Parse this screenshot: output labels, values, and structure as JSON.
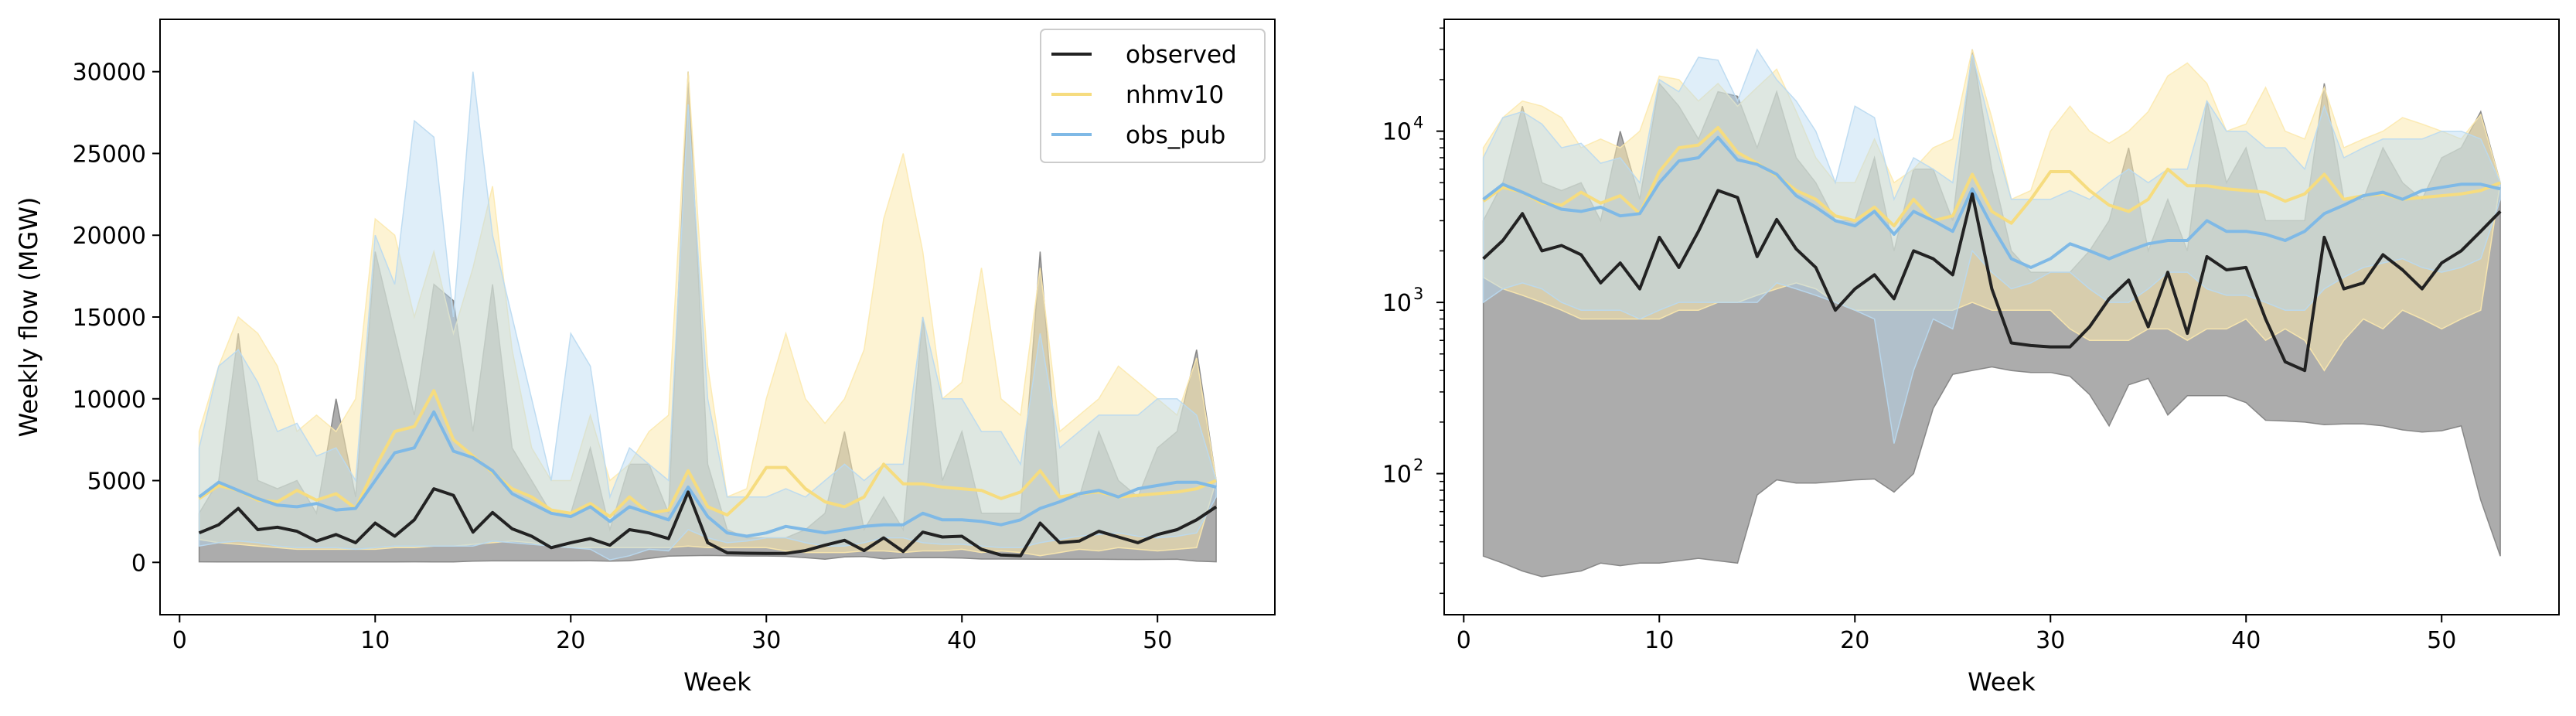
{
  "chart_data": [
    {
      "type": "line",
      "panel": "left",
      "title": "",
      "xlabel": "Week",
      "ylabel": "Weekly flow (MGW)",
      "yscale": "linear",
      "xlim": [
        -1,
        56
      ],
      "ylim": [
        -3200,
        33200
      ],
      "xticks": [
        0,
        10,
        20,
        30,
        40,
        50
      ],
      "yticks": [
        0,
        5000,
        10000,
        15000,
        20000,
        25000,
        30000
      ],
      "grid": false,
      "legend": {
        "placement": "top-right",
        "entries": [
          {
            "label": "observed",
            "color": "#222222"
          },
          {
            "label": "nhmv10",
            "color": "#f6dc7f"
          },
          {
            "label": "obs_pub",
            "color": "#7fb9e6"
          }
        ]
      }
    },
    {
      "type": "line",
      "panel": "right",
      "title": "",
      "xlabel": "Week",
      "ylabel": "",
      "yscale": "log",
      "xlim": [
        -1,
        56
      ],
      "ylim": [
        15,
        45000
      ],
      "xticks": [
        0,
        10,
        20,
        30,
        40,
        50
      ],
      "yticks": [
        100,
        1000,
        10000
      ],
      "ytick_labels": [
        "10",
        "10",
        "10"
      ],
      "ytick_exponents": [
        "2",
        "3",
        "4"
      ],
      "grid": false,
      "legend": null
    }
  ],
  "series_data": {
    "weeks": [
      1,
      2,
      3,
      4,
      5,
      6,
      7,
      8,
      9,
      10,
      11,
      12,
      13,
      14,
      15,
      16,
      17,
      18,
      19,
      20,
      21,
      22,
      23,
      24,
      25,
      26,
      27,
      28,
      29,
      30,
      31,
      32,
      33,
      34,
      35,
      36,
      37,
      38,
      39,
      40,
      41,
      42,
      43,
      44,
      45,
      46,
      47,
      48,
      49,
      50,
      51,
      52,
      53
    ],
    "series": [
      {
        "name": "observed",
        "color": "#222222",
        "band_color": "#7f7f7f",
        "median": [
          1800,
          2300,
          3300,
          2000,
          2150,
          1900,
          1300,
          1700,
          1200,
          2400,
          1600,
          2600,
          4500,
          4100,
          1850,
          3050,
          2050,
          1600,
          900,
          1200,
          1450,
          1050,
          2000,
          1800,
          1450,
          4300,
          1200,
          580,
          560,
          550,
          550,
          720,
          1050,
          1350,
          720,
          1500,
          660,
          1850,
          1550,
          1600,
          800,
          450,
          400,
          2400,
          1200,
          1300,
          1900,
          1550,
          1200,
          1700,
          2000,
          2600,
          3400
        ],
        "upper": [
          3000,
          5000,
          14000,
          5000,
          4500,
          5000,
          3000,
          10000,
          4000,
          19000,
          14000,
          9000,
          17000,
          16000,
          8000,
          17000,
          7000,
          5000,
          3000,
          3000,
          7000,
          2000,
          6000,
          6000,
          3000,
          30000,
          6000,
          2000,
          1500,
          1500,
          1500,
          2000,
          3000,
          8000,
          2000,
          4000,
          2000,
          15000,
          5000,
          8000,
          3000,
          3000,
          3000,
          19000,
          4000,
          4000,
          8000,
          5000,
          4000,
          7000,
          8000,
          13000,
          5000
        ],
        "lower": [
          33,
          30,
          27,
          25,
          26,
          27,
          30,
          29,
          30,
          30,
          31,
          32,
          31,
          30,
          75,
          92,
          88,
          88,
          90,
          92,
          93,
          78,
          100,
          240,
          380,
          400,
          420,
          400,
          390,
          390,
          370,
          290,
          190,
          330,
          360,
          220,
          285,
          285,
          285,
          260,
          205,
          203,
          200,
          193,
          195,
          195,
          190,
          180,
          175,
          178,
          190,
          70,
          33
        ]
      },
      {
        "name": "nhmv10",
        "color": "#f6dc7f",
        "band_color": "#fce9ae",
        "median": [
          3900,
          4700,
          4400,
          3800,
          3700,
          4400,
          3800,
          4200,
          3300,
          5800,
          8000,
          8300,
          10500,
          7500,
          6500,
          5500,
          4500,
          4000,
          3200,
          3000,
          3600,
          2800,
          4000,
          3000,
          3200,
          5600,
          3400,
          2900,
          4000,
          5800,
          5800,
          4500,
          3700,
          3400,
          4000,
          6000,
          4800,
          4800,
          4600,
          4500,
          4400,
          3900,
          4300,
          5600,
          4000,
          4200,
          4300,
          4000,
          4100,
          4200,
          4300,
          4500,
          5000
        ],
        "upper": [
          8000,
          12000,
          15000,
          14000,
          12000,
          8000,
          9000,
          8000,
          10000,
          21000,
          20000,
          15000,
          19000,
          14000,
          18000,
          23000,
          13000,
          7000,
          5000,
          5000,
          9000,
          5000,
          6000,
          8000,
          9000,
          30000,
          12000,
          4000,
          4500,
          10000,
          14000,
          10000,
          8500,
          10000,
          13000,
          21000,
          25000,
          19000,
          10000,
          11000,
          18000,
          10000,
          9000,
          18000,
          8000,
          9000,
          10000,
          12000,
          11000,
          10000,
          9000,
          12500,
          5000
        ],
        "lower": [
          1400,
          1200,
          1100,
          1000,
          900,
          800,
          800,
          800,
          800,
          800,
          900,
          900,
          1000,
          1000,
          1100,
          1200,
          1300,
          1200,
          1000,
          900,
          900,
          900,
          900,
          900,
          900,
          1000,
          900,
          900,
          900,
          900,
          700,
          600,
          600,
          600,
          700,
          700,
          600,
          700,
          700,
          800,
          600,
          700,
          600,
          400,
          600,
          800,
          700,
          900,
          800,
          700,
          800,
          900,
          5000
        ]
      },
      {
        "name": "obs_pub",
        "color": "#7fb9e6",
        "band_color": "#b9d9f1",
        "median": [
          4000,
          4900,
          4400,
          3900,
          3500,
          3400,
          3600,
          3200,
          3300,
          5000,
          6700,
          7000,
          9200,
          6800,
          6400,
          5600,
          4200,
          3600,
          3000,
          2800,
          3400,
          2500,
          3400,
          3000,
          2600,
          4600,
          2800,
          1800,
          1600,
          1800,
          2200,
          2000,
          1800,
          2000,
          2200,
          2300,
          2300,
          3000,
          2600,
          2600,
          2500,
          2300,
          2600,
          3300,
          3700,
          4200,
          4400,
          4000,
          4500,
          4700,
          4900,
          4900,
          4600
        ],
        "upper": [
          7000,
          12000,
          13000,
          11000,
          8000,
          8500,
          6500,
          7000,
          5000,
          20000,
          17000,
          27000,
          26000,
          15000,
          30000,
          20000,
          15000,
          10000,
          5000,
          14000,
          12000,
          4000,
          7000,
          6000,
          5000,
          28000,
          10000,
          4000,
          4000,
          4000,
          4500,
          4000,
          5000,
          6000,
          5000,
          6000,
          6000,
          15000,
          10000,
          10000,
          8000,
          8000,
          6000,
          14000,
          7000,
          8000,
          9000,
          9000,
          9000,
          10000,
          10000,
          9000,
          5000
        ],
        "lower": [
          1000,
          1200,
          1300,
          1200,
          1000,
          900,
          900,
          900,
          800,
          900,
          1000,
          1000,
          1000,
          1000,
          1000,
          1300,
          1200,
          1100,
          1000,
          900,
          800,
          150,
          400,
          800,
          700,
          2000,
          1500,
          1200,
          1300,
          1500,
          1500,
          1200,
          1000,
          1000,
          1200,
          1500,
          1500,
          1200,
          1100,
          1100,
          1000,
          900,
          900,
          1200,
          1400,
          1600,
          1700,
          1800,
          1600,
          1500,
          1600,
          1800,
          4000
        ]
      }
    ]
  }
}
